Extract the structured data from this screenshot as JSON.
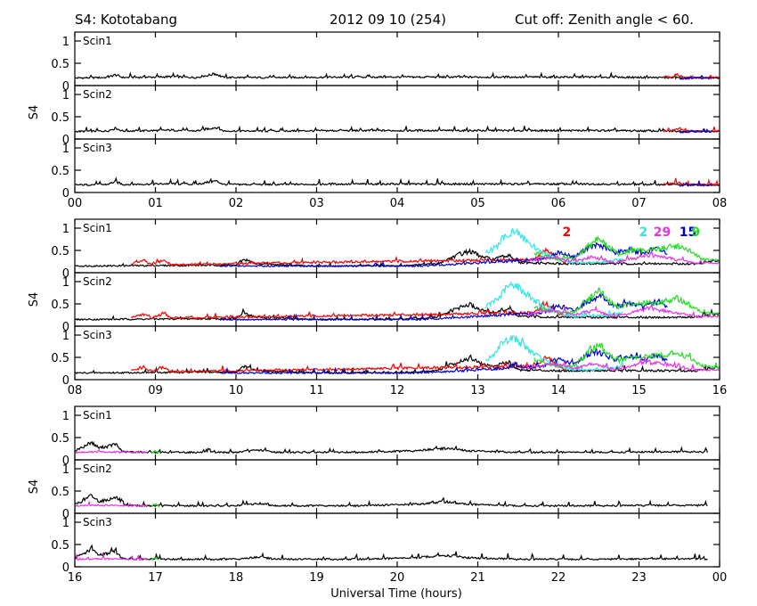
{
  "header": {
    "station": "S4: Kototabang",
    "date": "2012 09 10 (254)",
    "cutoff": "Cut off: Zenith angle < 60."
  },
  "chart_data": {
    "type": "line",
    "y_axis_label": "S4",
    "x_axis_label": "Universal Time (hours)",
    "y_ticks": [
      "0",
      "0.5",
      "1"
    ],
    "ylim": [
      0,
      1.2
    ],
    "receivers": [
      "Scin1",
      "Scin2",
      "Scin3"
    ],
    "colors": {
      "black": "#000000",
      "red": "#ff0000",
      "blue": "#0000cc",
      "cyan": "#33e6e6",
      "magenta": "#e633e6",
      "green": "#22dd22"
    },
    "prn_labels": [
      {
        "text": "2",
        "color": "red",
        "x": 14.05
      },
      {
        "text": "2",
        "color": "cyan",
        "x": 15.0
      },
      {
        "text": "29",
        "color": "magenta",
        "x": 15.18
      },
      {
        "text": "15",
        "color": "blue",
        "x": 15.5
      },
      {
        "text": "9",
        "color": "green",
        "x": 15.65
      }
    ],
    "groups": [
      {
        "x_ticks": [
          "00",
          "01",
          "02",
          "03",
          "04",
          "05",
          "06",
          "07",
          "08"
        ],
        "xlim": [
          0,
          8
        ],
        "series": [
          {
            "color": "black",
            "points": [
              [
                0.0,
                0.17
              ],
              [
                0.4,
                0.18
              ],
              [
                0.5,
                0.24
              ],
              [
                0.6,
                0.18
              ],
              [
                1.0,
                0.19
              ],
              [
                1.2,
                0.2
              ],
              [
                1.5,
                0.18
              ],
              [
                1.75,
                0.26
              ],
              [
                1.85,
                0.18
              ],
              [
                2.5,
                0.18
              ],
              [
                3.5,
                0.19
              ],
              [
                4.5,
                0.19
              ],
              [
                5.5,
                0.19
              ],
              [
                6.5,
                0.19
              ],
              [
                7.2,
                0.18
              ],
              [
                8.0,
                0.17
              ]
            ]
          },
          {
            "color": "red",
            "points": [
              [
                7.3,
                0.18
              ],
              [
                7.5,
                0.22
              ],
              [
                7.6,
                0.18
              ],
              [
                8.0,
                0.18
              ]
            ]
          },
          {
            "color": "blue",
            "points": [
              [
                7.5,
                0.15
              ],
              [
                7.7,
                0.17
              ],
              [
                7.9,
                0.16
              ]
            ]
          }
        ]
      },
      {
        "x_ticks": [
          "08",
          "09",
          "10",
          "11",
          "12",
          "13",
          "14",
          "15",
          "16"
        ],
        "xlim": [
          8,
          16
        ],
        "series": [
          {
            "color": "black",
            "points": [
              [
                8.0,
                0.15
              ],
              [
                9.0,
                0.16
              ],
              [
                10.0,
                0.17
              ],
              [
                10.1,
                0.3
              ],
              [
                10.25,
                0.2
              ],
              [
                11.0,
                0.15
              ],
              [
                12.0,
                0.15
              ],
              [
                12.5,
                0.2
              ],
              [
                12.75,
                0.4
              ],
              [
                12.9,
                0.48
              ],
              [
                13.05,
                0.35
              ],
              [
                13.2,
                0.3
              ],
              [
                13.4,
                0.4
              ],
              [
                13.5,
                0.22
              ],
              [
                14.0,
                0.2
              ],
              [
                14.5,
                0.2
              ],
              [
                15.0,
                0.2
              ],
              [
                15.4,
                0.2
              ],
              [
                15.7,
                0.2
              ],
              [
                16.0,
                0.28
              ]
            ]
          },
          {
            "color": "red",
            "points": [
              [
                8.7,
                0.2
              ],
              [
                8.85,
                0.27
              ],
              [
                8.95,
                0.18
              ],
              [
                9.1,
                0.28
              ],
              [
                9.2,
                0.18
              ],
              [
                13.7,
                0.3
              ],
              [
                13.85,
                0.52
              ],
              [
                14.0,
                0.3
              ],
              [
                14.1,
                0.22
              ]
            ]
          },
          {
            "color": "blue",
            "points": [
              [
                9.8,
                0.15
              ],
              [
                10.0,
                0.15
              ],
              [
                11.4,
                0.15
              ],
              [
                11.6,
                0.16
              ],
              [
                11.9,
                0.15
              ],
              [
                12.3,
                0.15
              ],
              [
                13.8,
                0.3
              ],
              [
                14.0,
                0.45
              ],
              [
                14.2,
                0.35
              ],
              [
                14.35,
                0.55
              ],
              [
                14.5,
                0.62
              ],
              [
                14.7,
                0.45
              ],
              [
                14.9,
                0.52
              ],
              [
                15.05,
                0.42
              ],
              [
                15.2,
                0.55
              ],
              [
                15.35,
                0.45
              ]
            ]
          },
          {
            "color": "cyan",
            "points": [
              [
                13.1,
                0.45
              ],
              [
                13.25,
                0.6
              ],
              [
                13.35,
                0.85
              ],
              [
                13.45,
                0.95
              ],
              [
                13.55,
                0.8
              ],
              [
                13.65,
                0.65
              ],
              [
                13.8,
                0.45
              ],
              [
                14.0,
                0.3
              ],
              [
                14.2,
                0.22
              ],
              [
                14.4,
                0.22
              ],
              [
                14.6,
                0.25
              ],
              [
                14.8,
                0.3
              ]
            ]
          },
          {
            "color": "green",
            "points": [
              [
                13.7,
                0.45
              ],
              [
                13.85,
                0.35
              ],
              [
                14.0,
                0.3
              ],
              [
                14.2,
                0.32
              ],
              [
                14.4,
                0.65
              ],
              [
                14.5,
                0.8
              ],
              [
                14.6,
                0.6
              ],
              [
                14.75,
                0.42
              ],
              [
                14.9,
                0.5
              ],
              [
                15.05,
                0.5
              ],
              [
                15.3,
                0.55
              ],
              [
                15.5,
                0.6
              ],
              [
                15.65,
                0.45
              ],
              [
                15.8,
                0.3
              ],
              [
                16.0,
                0.27
              ]
            ]
          },
          {
            "color": "magenta",
            "points": [
              [
                13.6,
                0.25
              ],
              [
                13.9,
                0.35
              ],
              [
                14.1,
                0.3
              ],
              [
                14.2,
                0.25
              ],
              [
                14.4,
                0.35
              ],
              [
                14.55,
                0.3
              ],
              [
                14.7,
                0.22
              ],
              [
                14.9,
                0.3
              ],
              [
                15.1,
                0.4
              ],
              [
                15.3,
                0.35
              ],
              [
                15.5,
                0.28
              ],
              [
                15.7,
                0.22
              ],
              [
                16.0,
                0.22
              ]
            ]
          }
        ]
      },
      {
        "x_ticks": [
          "16",
          "17",
          "18",
          "19",
          "20",
          "21",
          "22",
          "23",
          "00"
        ],
        "xlim": [
          16,
          24
        ],
        "series": [
          {
            "color": "black",
            "points": [
              [
                16.0,
                0.2
              ],
              [
                16.1,
                0.28
              ],
              [
                16.2,
                0.4
              ],
              [
                16.3,
                0.27
              ],
              [
                16.4,
                0.3
              ],
              [
                16.5,
                0.35
              ],
              [
                16.6,
                0.18
              ],
              [
                17.0,
                0.17
              ],
              [
                18.0,
                0.17
              ],
              [
                18.3,
                0.22
              ],
              [
                18.5,
                0.17
              ],
              [
                19.5,
                0.17
              ],
              [
                20.2,
                0.2
              ],
              [
                20.6,
                0.26
              ],
              [
                20.9,
                0.2
              ],
              [
                21.5,
                0.17
              ],
              [
                22.5,
                0.17
              ],
              [
                23.3,
                0.18
              ],
              [
                23.85,
                0.18
              ]
            ]
          },
          {
            "color": "magenta",
            "points": [
              [
                16.0,
                0.17
              ],
              [
                16.3,
                0.18
              ],
              [
                16.6,
                0.17
              ],
              [
                16.9,
                0.17
              ]
            ]
          },
          {
            "color": "green",
            "points": [
              [
                16.95,
                0.16
              ],
              [
                17.0,
                0.2
              ],
              [
                17.05,
                0.16
              ]
            ]
          }
        ]
      }
    ]
  }
}
